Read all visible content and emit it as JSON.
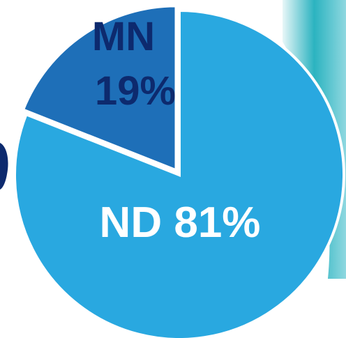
{
  "chart_data": {
    "type": "pie",
    "categories": [
      "ND",
      "MN"
    ],
    "values": [
      81,
      19
    ],
    "value_labels": [
      "81%",
      "19%"
    ],
    "colors": [
      "#29a8e0",
      "#1e6fb8"
    ],
    "label_colors": [
      "#ffffff",
      "#0d2a6e"
    ]
  }
}
